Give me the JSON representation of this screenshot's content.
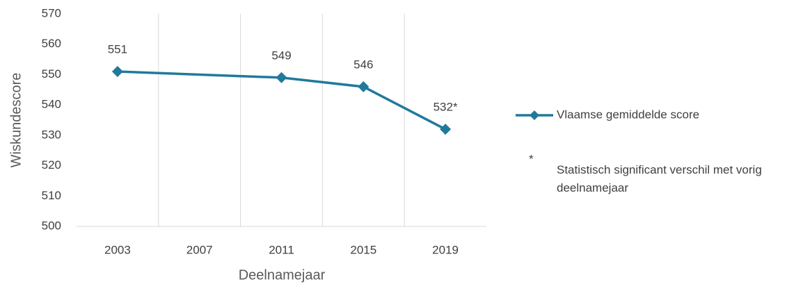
{
  "chart_data": {
    "type": "line",
    "x": [
      2003,
      2011,
      2015,
      2019
    ],
    "series": [
      {
        "name": "Vlaamse gemiddelde score",
        "color": "#1f7a9c",
        "values": [
          551,
          549,
          546,
          532
        ],
        "value_labels": [
          "551",
          "549",
          "546",
          "532*"
        ]
      }
    ],
    "xlim": [
      2001,
      2021
    ],
    "xticks": [
      2003,
      2007,
      2011,
      2015,
      2019
    ],
    "ylim": [
      500,
      570
    ],
    "yticks": [
      500,
      510,
      520,
      530,
      540,
      550,
      560,
      570
    ],
    "xlabel": "Deelnamejaar",
    "ylabel": "Wiskundescore",
    "legend": "right",
    "note_symbol": "*",
    "note": "Statistisch significant verschil met vorig deelnamejaar"
  }
}
